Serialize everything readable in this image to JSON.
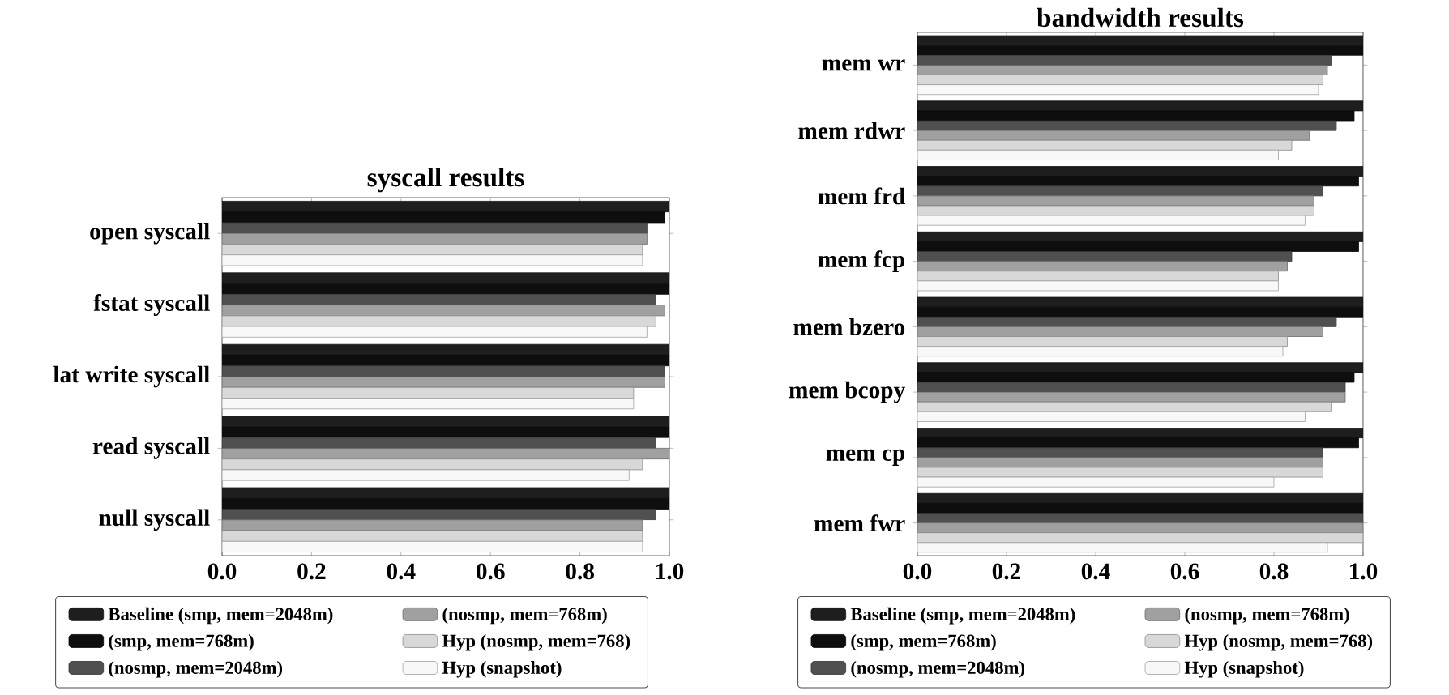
{
  "chart_data": [
    {
      "type": "bar",
      "orientation": "horizontal",
      "title": "syscall results",
      "categories": [
        "open syscall",
        "fstat syscall",
        "lat write syscall",
        "read syscall",
        "null syscall"
      ],
      "series": [
        {
          "name": "Baseline (smp, mem=2048m)",
          "color": "#1e1e1e",
          "values": [
            1.0,
            1.0,
            1.0,
            1.0,
            1.0
          ]
        },
        {
          "name": "(smp, mem=768m)",
          "color": "#0e0e0e",
          "values": [
            0.99,
            1.0,
            1.0,
            1.0,
            1.0
          ]
        },
        {
          "name": "(nosmp, mem=2048m)",
          "color": "#505050",
          "values": [
            0.95,
            0.97,
            0.99,
            0.97,
            0.97
          ]
        },
        {
          "name": "(nosmp, mem=768m)",
          "color": "#a0a0a0",
          "values": [
            0.95,
            0.99,
            0.99,
            1.0,
            0.94
          ]
        },
        {
          "name": "Hyp (nosmp, mem=768)",
          "color": "#d8d8d8",
          "values": [
            0.94,
            0.97,
            0.92,
            0.94,
            0.94
          ]
        },
        {
          "name": "Hyp (snapshot)",
          "color": "#f8f8f8",
          "values": [
            0.94,
            0.95,
            0.92,
            0.91,
            0.94
          ]
        }
      ],
      "xlim": [
        0,
        1
      ],
      "xticks": [
        {
          "value": 0,
          "label": "0.0"
        },
        {
          "value": 0.2,
          "label": "0.2"
        },
        {
          "value": 0.4,
          "label": "0.4"
        },
        {
          "value": 0.6,
          "label": "0.6"
        },
        {
          "value": 0.8,
          "label": "0.8"
        },
        {
          "value": 1,
          "label": "1.0"
        }
      ],
      "legend": "bottom"
    },
    {
      "type": "bar",
      "orientation": "horizontal",
      "title": "bandwidth results",
      "categories": [
        "mem wr",
        "mem rdwr",
        "mem frd",
        "mem fcp",
        "mem bzero",
        "mem bcopy",
        "mem cp",
        "mem fwr"
      ],
      "series": [
        {
          "name": "Baseline (smp, mem=2048m)",
          "color": "#1e1e1e",
          "values": [
            1.0,
            1.0,
            1.0,
            1.0,
            1.0,
            1.0,
            1.0,
            1.0
          ]
        },
        {
          "name": "(smp, mem=768m)",
          "color": "#0e0e0e",
          "values": [
            1.0,
            0.98,
            0.99,
            0.99,
            1.0,
            0.98,
            0.99,
            1.0
          ]
        },
        {
          "name": "(nosmp, mem=2048m)",
          "color": "#505050",
          "values": [
            0.93,
            0.94,
            0.91,
            0.84,
            0.94,
            0.96,
            0.91,
            1.0
          ]
        },
        {
          "name": "(nosmp, mem=768m)",
          "color": "#a0a0a0",
          "values": [
            0.92,
            0.88,
            0.89,
            0.83,
            0.91,
            0.96,
            0.91,
            1.0
          ]
        },
        {
          "name": "Hyp (nosmp, mem=768)",
          "color": "#d8d8d8",
          "values": [
            0.91,
            0.84,
            0.89,
            0.81,
            0.83,
            0.93,
            0.91,
            1.0
          ]
        },
        {
          "name": "Hyp (snapshot)",
          "color": "#f8f8f8",
          "values": [
            0.9,
            0.81,
            0.87,
            0.81,
            0.82,
            0.87,
            0.8,
            0.92
          ]
        }
      ],
      "xlim": [
        0,
        1
      ],
      "xticks": [
        {
          "value": 0,
          "label": "0.0"
        },
        {
          "value": 0.2,
          "label": "0.2"
        },
        {
          "value": 0.4,
          "label": "0.4"
        },
        {
          "value": 0.6,
          "label": "0.6"
        },
        {
          "value": 0.8,
          "label": "0.8"
        },
        {
          "value": 1,
          "label": "1.0"
        }
      ],
      "legend": "bottom"
    }
  ]
}
